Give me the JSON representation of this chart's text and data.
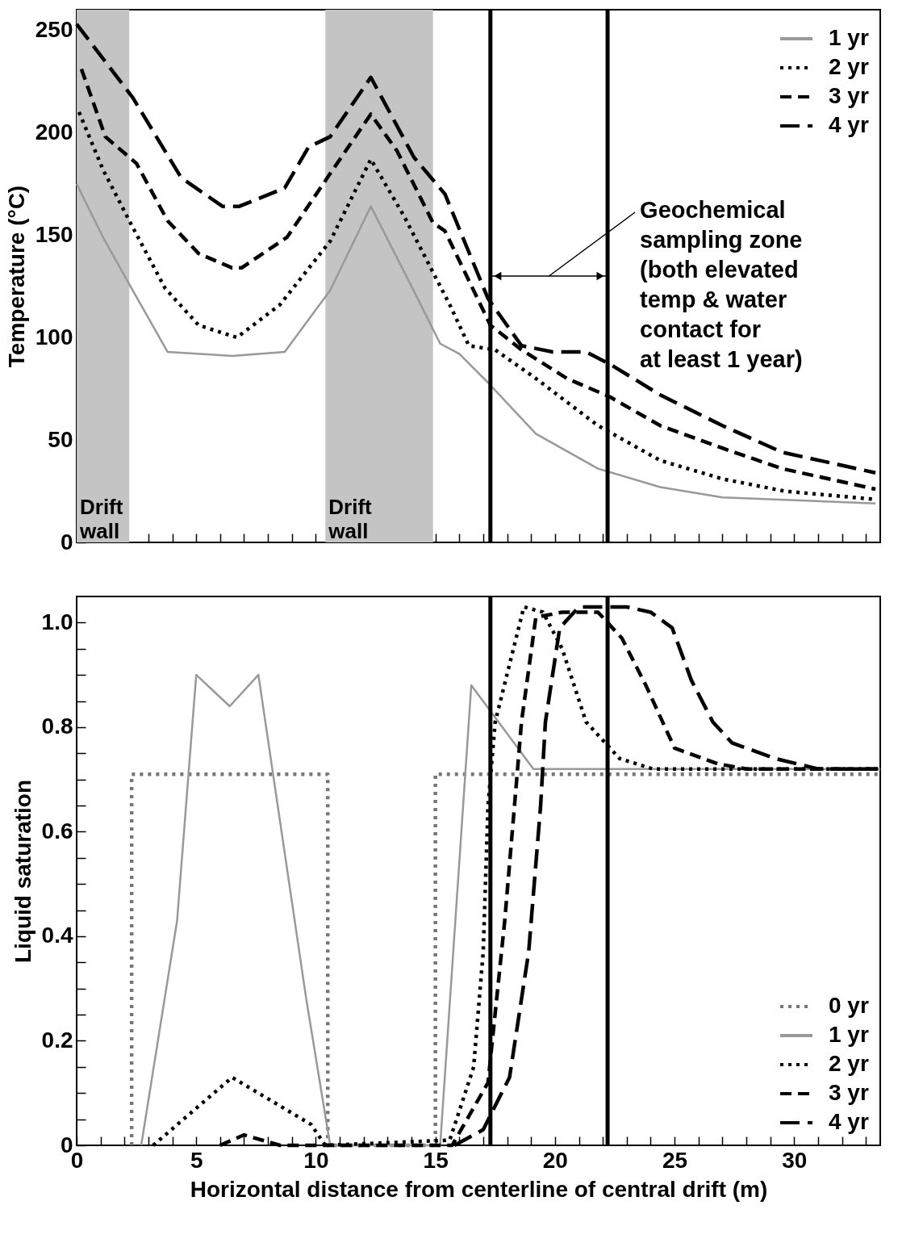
{
  "chart_data": [
    {
      "type": "line",
      "ylabel": "Temperature (°C)",
      "xlim": [
        0,
        33.6
      ],
      "ylim": [
        0,
        260
      ],
      "tick_labels": "y",
      "legend": "top right",
      "xticks": [
        0,
        {
          "value": 1,
          "label": null
        },
        {
          "value": 2,
          "label": null
        },
        {
          "value": 3,
          "label": null
        },
        {
          "value": 4,
          "label": null
        },
        5,
        {
          "value": 6,
          "label": null
        },
        {
          "value": 7,
          "label": null
        },
        {
          "value": 8,
          "label": null
        },
        {
          "value": 9,
          "label": null
        },
        10,
        {
          "value": 11,
          "label": null
        },
        {
          "value": 12,
          "label": null
        },
        {
          "value": 13,
          "label": null
        },
        {
          "value": 14,
          "label": null
        },
        15,
        {
          "value": 16,
          "label": null
        },
        {
          "value": 17,
          "label": null
        },
        {
          "value": 18,
          "label": null
        },
        {
          "value": 19,
          "label": null
        },
        20,
        {
          "value": 21,
          "label": null
        },
        {
          "value": 22,
          "label": null
        },
        {
          "value": 23,
          "label": null
        },
        {
          "value": 24,
          "label": null
        },
        25,
        {
          "value": 26,
          "label": null
        },
        {
          "value": 27,
          "label": null
        },
        {
          "value": 28,
          "label": null
        },
        {
          "value": 29,
          "label": null
        },
        30,
        {
          "value": 31,
          "label": null
        },
        {
          "value": 32,
          "label": null
        },
        {
          "value": 33,
          "label": null
        }
      ],
      "yticks": [
        0,
        {
          "value": 10,
          "label": null
        },
        {
          "value": 20,
          "label": null
        },
        {
          "value": 30,
          "label": null
        },
        {
          "value": 40,
          "label": null
        },
        50,
        {
          "value": 60,
          "label": null
        },
        {
          "value": 70,
          "label": null
        },
        {
          "value": 80,
          "label": null
        },
        {
          "value": 90,
          "label": null
        },
        100,
        {
          "value": 110,
          "label": null
        },
        {
          "value": 120,
          "label": null
        },
        {
          "value": 130,
          "label": null
        },
        {
          "value": 140,
          "label": null
        },
        150,
        {
          "value": 160,
          "label": null
        },
        {
          "value": 170,
          "label": null
        },
        {
          "value": 180,
          "label": null
        },
        {
          "value": 190,
          "label": null
        },
        200,
        {
          "value": 210,
          "label": null
        },
        {
          "value": 220,
          "label": null
        },
        {
          "value": 230,
          "label": null
        },
        {
          "value": 240,
          "label": null
        },
        250
      ],
      "bands": [
        {
          "axis": "x",
          "from": 0,
          "to": 2.2,
          "label": "Drift\nwall",
          "color": "#c4c4c4"
        },
        {
          "axis": "x",
          "from": 10.4,
          "to": 14.9,
          "label": "Drift\nwall",
          "color": "#c4c4c4"
        }
      ],
      "ref_lines": [
        {
          "axis": "x",
          "value": 17.3,
          "color": "#000000"
        },
        {
          "axis": "x",
          "value": 22.2,
          "color": "#000000"
        }
      ],
      "annotations": [
        "Geochemical\nsampling zone\n(both elevated\ntemp & water\ncontact for\nat least 1 year)"
      ],
      "series": [
        {
          "name": "1 yr",
          "color": "#999999",
          "line_style": "solid",
          "x": [
            0,
            1.1,
            2.2,
            3.8,
            6.5,
            8.7,
            10.6,
            12.3,
            14,
            15.2,
            16,
            17.2,
            19.2,
            21.8,
            24.4,
            27,
            33.4
          ],
          "values": [
            175,
            149,
            126,
            93,
            91,
            93,
            123,
            164,
            125,
            97,
            92,
            78,
            53,
            36,
            27,
            22,
            19
          ]
        },
        {
          "name": "2 yr",
          "color": "#000000",
          "line_style": "dotted",
          "x": [
            0.1,
            1.1,
            2.2,
            3.7,
            5.1,
            6.7,
            8.5,
            10.6,
            12.3,
            13.7,
            15.6,
            16.4,
            17.5,
            19.2,
            21.8,
            24.4,
            27,
            29.6,
            33.4
          ],
          "values": [
            210,
            182,
            157,
            124,
            106,
            100,
            116,
            147,
            187,
            159,
            116,
            96,
            94,
            80,
            57,
            40,
            31,
            25,
            21
          ]
        },
        {
          "name": "3 yr",
          "color": "#000000",
          "line_style": "dashed",
          "x": [
            0.2,
            1.2,
            2.5,
            3.8,
            5.1,
            6.5,
            6.9,
            8.8,
            10.6,
            12.3,
            13.4,
            14.9,
            15.4,
            17.3,
            18.6,
            20.5,
            22.3,
            24.4,
            27,
            29.5,
            33.4
          ],
          "values": [
            231,
            198,
            185,
            157,
            141,
            134,
            134,
            149,
            180,
            209,
            191,
            156,
            152,
            106,
            94,
            80,
            71,
            57,
            46,
            36,
            26
          ]
        },
        {
          "name": "4 yr",
          "color": "#000000",
          "line_style": "dashed",
          "x": [
            0,
            2.35,
            4.37,
            6.1,
            6.8,
            8.7,
            9.7,
            10.6,
            12.3,
            14.1,
            15.4,
            17.2,
            18.6,
            19.9,
            21.3,
            22.3,
            24.4,
            27,
            29.5,
            33.4
          ],
          "values": [
            253,
            217,
            178,
            164,
            164,
            173,
            193,
            198,
            227,
            188,
            170,
            119,
            96,
            93,
            93,
            87,
            72,
            57,
            44,
            34
          ]
        }
      ]
    },
    {
      "type": "line",
      "xlabel": "Horizontal distance from centerline of central drift (m)",
      "ylabel": "Liquid saturation",
      "xlim": [
        0,
        33.6
      ],
      "ylim": [
        0,
        1.05
      ],
      "legend": "bottom right",
      "xticks": [
        0,
        {
          "value": 1,
          "label": null
        },
        {
          "value": 2,
          "label": null
        },
        {
          "value": 3,
          "label": null
        },
        {
          "value": 4,
          "label": null
        },
        5,
        {
          "value": 6,
          "label": null
        },
        {
          "value": 7,
          "label": null
        },
        {
          "value": 8,
          "label": null
        },
        {
          "value": 9,
          "label": null
        },
        10,
        {
          "value": 11,
          "label": null
        },
        {
          "value": 12,
          "label": null
        },
        {
          "value": 13,
          "label": null
        },
        {
          "value": 14,
          "label": null
        },
        15,
        {
          "value": 16,
          "label": null
        },
        {
          "value": 17,
          "label": null
        },
        {
          "value": 18,
          "label": null
        },
        {
          "value": 19,
          "label": null
        },
        20,
        {
          "value": 21,
          "label": null
        },
        {
          "value": 22,
          "label": null
        },
        {
          "value": 23,
          "label": null
        },
        {
          "value": 24,
          "label": null
        },
        25,
        {
          "value": 26,
          "label": null
        },
        {
          "value": 27,
          "label": null
        },
        {
          "value": 28,
          "label": null
        },
        {
          "value": 29,
          "label": null
        },
        30,
        {
          "value": 31,
          "label": null
        },
        {
          "value": 32,
          "label": null
        },
        {
          "value": 33,
          "label": null
        }
      ],
      "yticks": [
        0,
        {
          "value": 0.05,
          "label": null
        },
        {
          "value": 0.1,
          "label": null
        },
        {
          "value": 0.15,
          "label": null
        },
        0.2,
        {
          "value": 0.25,
          "label": null
        },
        {
          "value": 0.3,
          "label": null
        },
        {
          "value": 0.35,
          "label": null
        },
        0.4,
        {
          "value": 0.45,
          "label": null
        },
        {
          "value": 0.5,
          "label": null
        },
        {
          "value": 0.55,
          "label": null
        },
        0.6,
        {
          "value": 0.65,
          "label": null
        },
        {
          "value": 0.7,
          "label": null
        },
        {
          "value": 0.75,
          "label": null
        },
        0.8,
        {
          "value": 0.85,
          "label": null
        },
        {
          "value": 0.9,
          "label": null
        },
        {
          "value": 0.95,
          "label": null
        },
        {
          "value": 1,
          "label": "1.0"
        }
      ],
      "ref_lines": [
        {
          "axis": "x",
          "value": 17.3,
          "color": "#000000"
        },
        {
          "axis": "x",
          "value": 22.2,
          "color": "#000000"
        }
      ],
      "series": [
        {
          "name": "0 yr",
          "color": "#777777",
          "line_style": "dotted",
          "x": [
            2.3,
            2.3,
            10.5,
            10.5,
            15.0,
            15.0,
            33.6
          ],
          "values": [
            0,
            0.71,
            0.71,
            0,
            0,
            0.71,
            0.71
          ]
        },
        {
          "name": "1 yr",
          "color": "#999999",
          "line_style": "solid",
          "x": [
            2.7,
            4.2,
            5.0,
            6.4,
            7.6,
            9.6,
            10.6,
            15.2,
            16.5,
            19.1,
            33.6
          ],
          "values": [
            0,
            0.43,
            0.9,
            0.84,
            0.9,
            0.28,
            0,
            0,
            0.88,
            0.72,
            0.72
          ]
        },
        {
          "name": "2 yr",
          "color": "#000000",
          "line_style": "dotted",
          "x": [
            3.2,
            6.5,
            9.8,
            10.4,
            15.6,
            16.6,
            17.0,
            17.2,
            17.5,
            18.7,
            19.5,
            20.3,
            21.3,
            22.7,
            24.1,
            33.6
          ],
          "values": [
            0,
            0.13,
            0.04,
            0,
            0.01,
            0.15,
            0.37,
            0.65,
            0.81,
            1.03,
            1.02,
            0.95,
            0.81,
            0.74,
            0.72,
            0.72
          ]
        },
        {
          "name": "3 yr",
          "color": "#000000",
          "line_style": "dashed",
          "x": [
            6.0,
            7.0,
            8.5,
            15.7,
            17.2,
            17.9,
            18.4,
            18.6,
            19.2,
            20.3,
            21.8,
            22.8,
            23.8,
            24.5,
            25.0,
            26.8,
            28,
            33.6
          ],
          "values": [
            0,
            0.02,
            0,
            0,
            0.12,
            0.43,
            0.7,
            0.81,
            1.01,
            1.02,
            1.02,
            0.97,
            0.88,
            0.81,
            0.76,
            0.73,
            0.72,
            0.72
          ]
        },
        {
          "name": "4 yr",
          "color": "#000000",
          "line_style": "dashed",
          "x": [
            15.8,
            17.0,
            18.1,
            18.9,
            19.4,
            19.6,
            20.2,
            21.0,
            23.0,
            24.0,
            24.9,
            25.7,
            26.6,
            27.4,
            29.2,
            31,
            33.6
          ],
          "values": [
            0,
            0.03,
            0.13,
            0.37,
            0.65,
            0.81,
            0.99,
            1.03,
            1.03,
            1.02,
            0.99,
            0.89,
            0.81,
            0.77,
            0.74,
            0.72,
            0.72
          ]
        }
      ]
    }
  ]
}
